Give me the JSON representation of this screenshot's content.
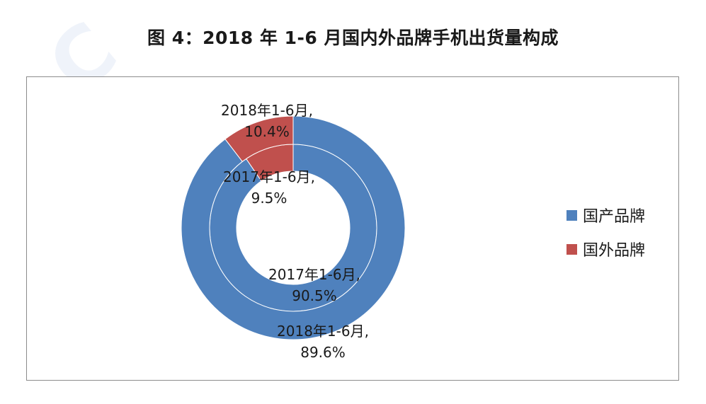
{
  "watermark": "C",
  "title": "图 4：2018 年 1-6 月国内外品牌手机出货量构成",
  "colors": {
    "domestic": "#4f81bd",
    "foreign": "#c0504d",
    "border": "#8c8c8c"
  },
  "legend": [
    {
      "label": "国产品牌",
      "color": "#4f81bd"
    },
    {
      "label": "国外品牌",
      "color": "#c0504d"
    }
  ],
  "chart_data": {
    "type": "pie",
    "variant": "doughnut",
    "title": "图 4：2018 年 1-6 月国内外品牌手机出货量构成",
    "categories": [
      "国产品牌",
      "国外品牌"
    ],
    "series": [
      {
        "name": "2017年1-6月",
        "ring": "inner",
        "values": [
          90.5,
          9.5
        ]
      },
      {
        "name": "2018年1-6月",
        "ring": "outer",
        "values": [
          89.6,
          10.4
        ]
      }
    ],
    "data_labels": [
      {
        "series": "2018年1-6月",
        "category": "国外品牌",
        "line1": "2018年1-6月,",
        "line2": "10.4%"
      },
      {
        "series": "2017年1-6月",
        "category": "国外品牌",
        "line1": "2017年1-6月,",
        "line2": "9.5%"
      },
      {
        "series": "2017年1-6月",
        "category": "国产品牌",
        "line1": "2017年1-6月,",
        "line2": "90.5%"
      },
      {
        "series": "2018年1-6月",
        "category": "国产品牌",
        "line1": "2018年1-6月,",
        "line2": "89.6%"
      }
    ],
    "legend_position": "right"
  }
}
